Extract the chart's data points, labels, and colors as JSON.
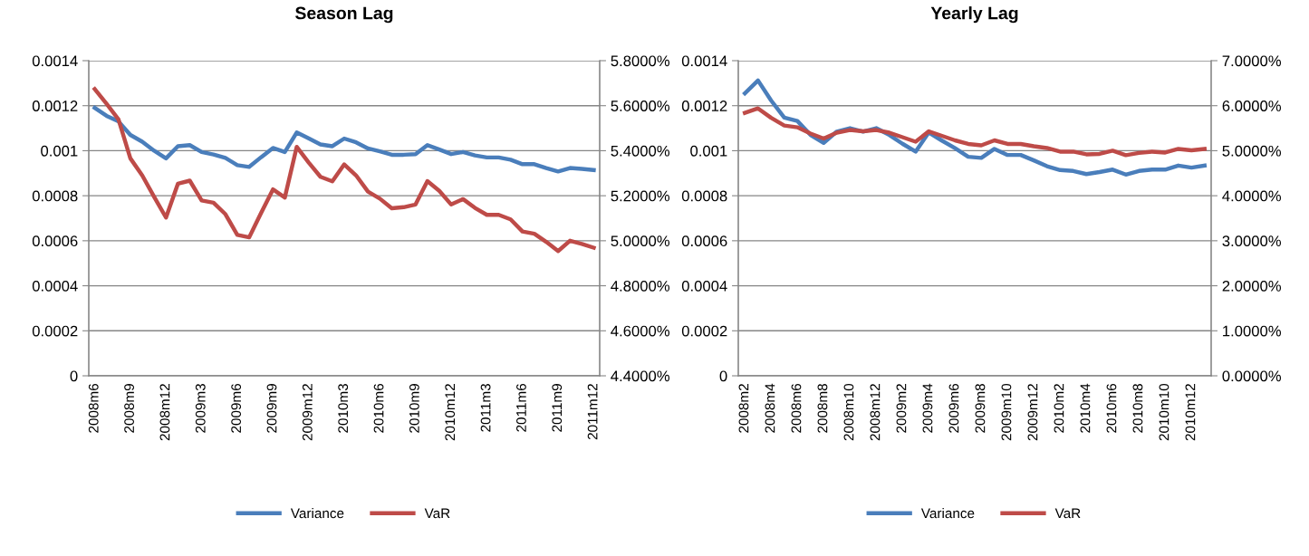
{
  "chart_data": [
    {
      "type": "line",
      "title": "Season Lag",
      "categories": [
        "2008m6",
        null,
        null,
        "2008m9",
        null,
        null,
        "2008m12",
        null,
        null,
        "2009m3",
        null,
        null,
        "2009m6",
        null,
        null,
        "2009m9",
        null,
        null,
        "2009m12",
        null,
        null,
        "2010m3",
        null,
        null,
        "2010m6",
        null,
        null,
        "2010m9",
        null,
        null,
        "2010m12",
        null,
        null,
        "2011m3",
        null,
        null,
        "2011m6",
        null,
        null,
        "2011m9",
        null,
        null,
        "2011m12"
      ],
      "series": [
        {
          "name": "Variance",
          "color": "#4a7ebb",
          "values": [
            0.00119,
            0.001155,
            0.00113,
            0.00107,
            0.00104,
            0.001,
            0.000966,
            0.00102,
            0.001025,
            0.000994,
            0.000983,
            0.000968,
            0.000936,
            0.000928,
            0.000971,
            0.001012,
            0.000994,
            0.001081,
            0.001055,
            0.001028,
            0.00102,
            0.001054,
            0.001037,
            0.00101,
            0.000997,
            0.000982,
            0.000982,
            0.000985,
            0.001025,
            0.001005,
            0.000985,
            0.000994,
            0.000979,
            0.00097,
            0.00097,
            0.00096,
            0.00094,
            0.00094,
            0.000923,
            0.000908,
            0.000923,
            0.000919,
            0.000914
          ]
        },
        {
          "name": "VaR",
          "color": "#be4b48",
          "axis": "y2",
          "values": [
            5.674,
            5.608,
            5.539,
            5.366,
            5.29,
            5.195,
            5.103,
            5.253,
            5.267,
            5.179,
            5.169,
            5.118,
            5.026,
            5.015,
            5.123,
            5.228,
            5.192,
            5.417,
            5.348,
            5.284,
            5.264,
            5.339,
            5.29,
            5.218,
            5.187,
            5.144,
            5.149,
            5.161,
            5.265,
            5.222,
            5.161,
            5.185,
            5.146,
            5.115,
            5.115,
            5.095,
            5.041,
            5.031,
            4.995,
            4.954,
            5.0,
            4.986,
            4.969
          ]
        }
      ],
      "ylim": [
        0,
        0.0014
      ],
      "yticks": [
        0,
        0.0002,
        0.0004,
        0.0006,
        0.0008,
        0.001,
        0.0012,
        0.0014
      ],
      "y2lim": [
        4.4,
        5.8
      ],
      "y2ticks": [
        {
          "value": 4.4,
          "label": "4.4000%"
        },
        {
          "value": 4.6,
          "label": "4.6000%"
        },
        {
          "value": 4.8,
          "label": "4.8000%"
        },
        {
          "value": 5.0,
          "label": "5.0000%"
        },
        {
          "value": 5.2,
          "label": "5.2000%"
        },
        {
          "value": 5.4,
          "label": "5.4000%"
        },
        {
          "value": 5.6,
          "label": "5.6000%"
        },
        {
          "value": 5.8,
          "label": "5.8000%"
        }
      ],
      "grid": "y",
      "legend": "bottom",
      "marker": "none",
      "line_style": "solid"
    },
    {
      "type": "line",
      "title": "Yearly Lag",
      "categories": [
        "2008m2",
        null,
        "2008m4",
        null,
        "2008m6",
        null,
        "2008m8",
        null,
        "2008m10",
        null,
        "2008m12",
        null,
        "2009m2",
        null,
        "2009m4",
        null,
        "2009m6",
        null,
        "2009m8",
        null,
        "2009m10",
        null,
        "2009m12",
        null,
        "2010m2",
        null,
        "2010m4",
        null,
        "2010m6",
        null,
        "2010m8",
        null,
        "2010m10",
        null,
        "2010m12",
        null
      ],
      "series": [
        {
          "name": "Variance",
          "color": "#4a7ebb",
          "values": [
            0.001255,
            0.001312,
            0.001223,
            0.001147,
            0.001132,
            0.00107,
            0.001035,
            0.001085,
            0.0011,
            0.001085,
            0.0011,
            0.00107,
            0.001031,
            0.000996,
            0.001081,
            0.001045,
            0.001011,
            0.000973,
            0.000968,
            0.001008,
            0.000981,
            0.000981,
            0.000957,
            0.000931,
            0.000914,
            0.00091,
            0.000896,
            0.000905,
            0.000916,
            0.000894,
            0.00091,
            0.000916,
            0.000916,
            0.000934,
            0.000925,
            0.000934
          ]
        },
        {
          "name": "VaR",
          "color": "#be4b48",
          "axis": "y2",
          "values": [
            5.84,
            5.94,
            5.73,
            5.56,
            5.52,
            5.38,
            5.27,
            5.4,
            5.46,
            5.43,
            5.46,
            5.4,
            5.3,
            5.2,
            5.43,
            5.33,
            5.23,
            5.15,
            5.12,
            5.23,
            5.15,
            5.15,
            5.1,
            5.06,
            4.98,
            4.98,
            4.92,
            4.93,
            5.0,
            4.9,
            4.95,
            4.98,
            4.96,
            5.04,
            5.01,
            5.04
          ]
        }
      ],
      "ylim": [
        0,
        0.0014
      ],
      "yticks": [
        0,
        0.0002,
        0.0004,
        0.0006,
        0.0008,
        0.001,
        0.0012,
        0.0014
      ],
      "y2lim": [
        0,
        7
      ],
      "y2ticks": [
        {
          "value": 0,
          "label": "0.0000%"
        },
        {
          "value": 1,
          "label": "1.0000%"
        },
        {
          "value": 2,
          "label": "2.0000%"
        },
        {
          "value": 3,
          "label": "3.0000%"
        },
        {
          "value": 4,
          "label": "4.0000%"
        },
        {
          "value": 5,
          "label": "5.0000%"
        },
        {
          "value": 6,
          "label": "6.0000%"
        },
        {
          "value": 7,
          "label": "7.0000%"
        }
      ],
      "grid": "y",
      "legend": "bottom",
      "marker": "none",
      "line_style": "solid"
    }
  ]
}
